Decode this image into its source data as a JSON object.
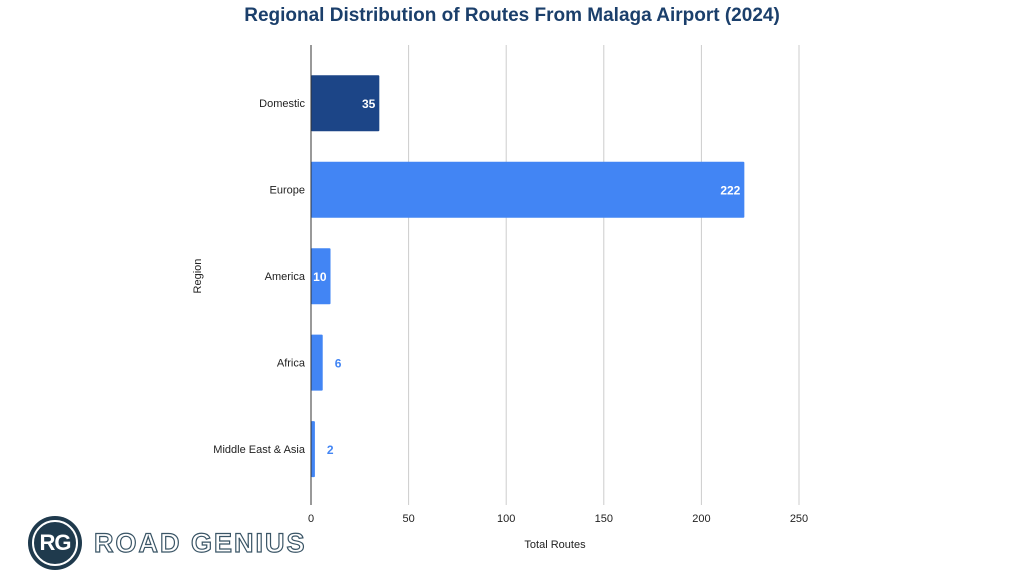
{
  "chart_data": {
    "type": "bar",
    "orientation": "horizontal",
    "title": "Regional Distribution of Routes From Malaga Airport (2024)",
    "xlabel": "Total Routes",
    "ylabel": "Region",
    "categories": [
      "Domestic",
      "Europe",
      "America",
      "Africa",
      "Middle East & Asia"
    ],
    "values": [
      35,
      222,
      10,
      6,
      2
    ],
    "data_labels": [
      "35",
      "222",
      "10",
      "6",
      "2"
    ],
    "xlim": [
      0,
      250
    ],
    "xticks": [
      0,
      50,
      100,
      150,
      200,
      250
    ],
    "xtick_labels": [
      "0",
      "50",
      "100",
      "150",
      "200",
      "250"
    ],
    "grid": "vertical",
    "colors": [
      "#1c4587",
      "#4285f4",
      "#4285f4",
      "#4285f4",
      "#4285f4"
    ]
  },
  "logo": {
    "badge": "RG",
    "text": "ROAD GENIUS"
  }
}
